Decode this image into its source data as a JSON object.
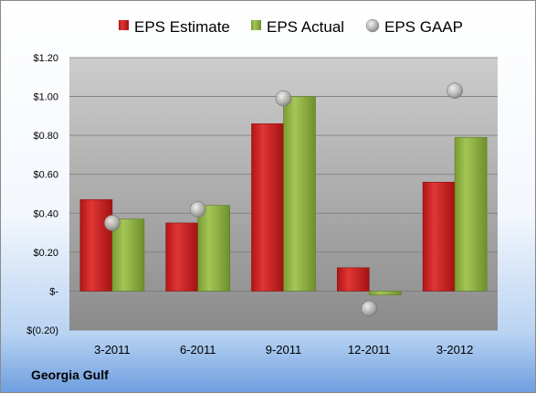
{
  "company": "Georgia Gulf",
  "colors": {
    "estimate": "#cc1f1f",
    "actual": "#8cb040",
    "gaap": "#b8b8b8",
    "plot_top": "#c8c8c8",
    "plot_bottom": "#8e8e8e"
  },
  "chart_data": {
    "type": "bar",
    "categories": [
      "3-2011",
      "6-2011",
      "9-2011",
      "12-2011",
      "3-2012"
    ],
    "series": [
      {
        "name": "EPS Estimate",
        "kind": "bar",
        "values": [
          0.47,
          0.35,
          0.86,
          0.12,
          0.56
        ]
      },
      {
        "name": "EPS Actual",
        "kind": "bar",
        "values": [
          0.37,
          0.44,
          1.0,
          -0.02,
          0.79
        ]
      },
      {
        "name": "EPS GAAP",
        "kind": "marker",
        "values": [
          0.35,
          0.42,
          0.99,
          -0.09,
          1.03
        ]
      }
    ],
    "ylim": [
      -0.2,
      1.2
    ],
    "yticks": [
      -0.2,
      0,
      0.2,
      0.4,
      0.6,
      0.8,
      1.0,
      1.2
    ],
    "ytick_labels": [
      "$(0.20)",
      "$-",
      "$0.20",
      "$0.40",
      "$0.60",
      "$0.80",
      "$1.00",
      "$1.20"
    ],
    "grid": true,
    "legend_position": "top"
  }
}
